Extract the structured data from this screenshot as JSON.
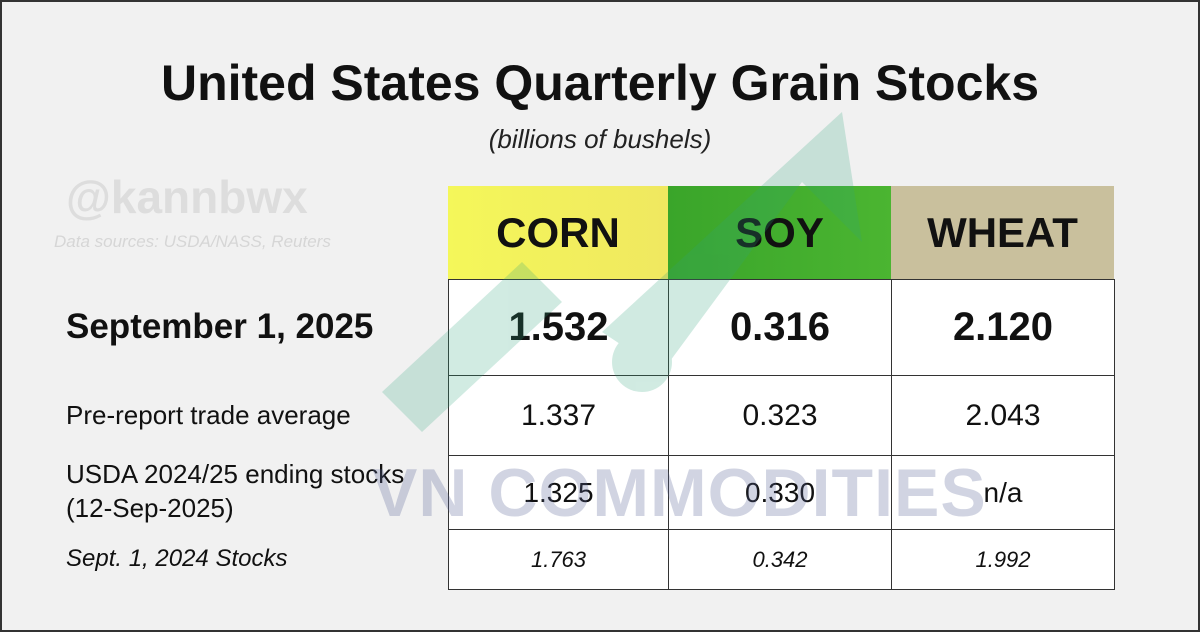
{
  "header": {
    "title": "United States Quarterly Grain Stocks",
    "subtitle": "(billions of bushels)",
    "handle": "@kannbwx",
    "sources": "Data sources: USDA/NASS, Reuters",
    "watermark": "VN COMMODITIES"
  },
  "table": {
    "columns": [
      "CORN",
      "SOY",
      "WHEAT"
    ],
    "rows": [
      [
        "September 1, 2025",
        "1.532",
        "0.316",
        "2.120"
      ],
      [
        "Pre-report trade average",
        "1.337",
        "0.323",
        "2.043"
      ],
      [
        "USDA 2024/25 ending stocks (12-Sep-2025)",
        "1.325",
        "0.330",
        "n/a"
      ],
      [
        "Sept. 1, 2024 Stocks",
        "1.763",
        "0.342",
        "1.992"
      ]
    ]
  }
}
